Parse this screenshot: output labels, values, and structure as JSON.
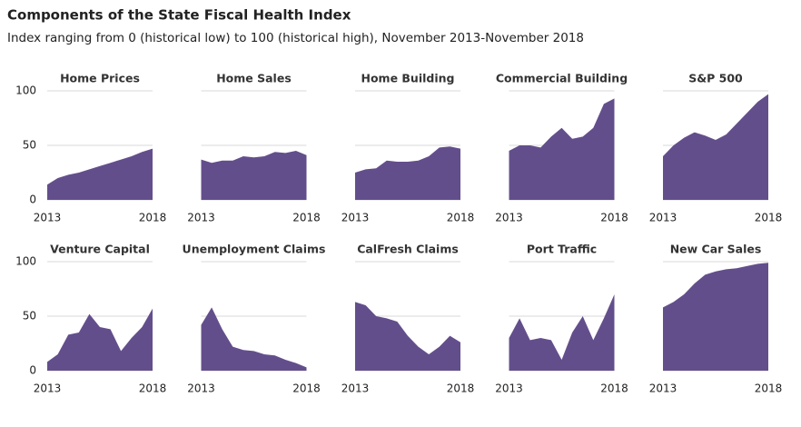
{
  "title": "Components of the State Fiscal Health Index",
  "subtitle": "Index ranging from 0 (historical low) to 100 (historical high), November 2013-November 2018",
  "chart_data": [
    {
      "type": "area",
      "title": "Home Prices",
      "x": [
        2013,
        2013.5,
        2014,
        2014.5,
        2015,
        2015.5,
        2016,
        2016.5,
        2017,
        2017.5,
        2018
      ],
      "values": [
        14,
        20,
        23,
        25,
        28,
        31,
        34,
        37,
        40,
        44,
        47
      ],
      "color": "#634e8c",
      "xlim": [
        2013,
        2018
      ],
      "xticks": [
        2013,
        2018
      ],
      "ylim": [
        0,
        100
      ],
      "yticks": [
        0,
        50,
        100
      ],
      "grid": true
    },
    {
      "type": "area",
      "title": "Home Sales",
      "x": [
        2013,
        2013.5,
        2014,
        2014.5,
        2015,
        2015.5,
        2016,
        2016.5,
        2017,
        2017.5,
        2018
      ],
      "values": [
        37,
        34,
        36,
        36,
        40,
        39,
        40,
        44,
        43,
        45,
        41
      ],
      "color": "#634e8c",
      "xlim": [
        2013,
        2018
      ],
      "xticks": [
        2013,
        2018
      ],
      "ylim": [
        0,
        100
      ],
      "yticks": [
        0,
        50,
        100
      ],
      "grid": true
    },
    {
      "type": "area",
      "title": "Home Building",
      "x": [
        2013,
        2013.5,
        2014,
        2014.5,
        2015,
        2015.5,
        2016,
        2016.5,
        2017,
        2017.5,
        2018
      ],
      "values": [
        25,
        28,
        29,
        36,
        35,
        35,
        36,
        40,
        48,
        49,
        47
      ],
      "color": "#634e8c",
      "xlim": [
        2013,
        2018
      ],
      "xticks": [
        2013,
        2018
      ],
      "ylim": [
        0,
        100
      ],
      "yticks": [
        0,
        50,
        100
      ],
      "grid": true
    },
    {
      "type": "area",
      "title": "Commercial Building",
      "x": [
        2013,
        2013.5,
        2014,
        2014.5,
        2015,
        2015.5,
        2016,
        2016.5,
        2017,
        2017.5,
        2018
      ],
      "values": [
        45,
        50,
        50,
        48,
        58,
        66,
        56,
        58,
        66,
        88,
        93
      ],
      "color": "#634e8c",
      "xlim": [
        2013,
        2018
      ],
      "xticks": [
        2013,
        2018
      ],
      "ylim": [
        0,
        100
      ],
      "yticks": [
        0,
        50,
        100
      ],
      "grid": true
    },
    {
      "type": "area",
      "title": "S&P 500",
      "x": [
        2013,
        2013.5,
        2014,
        2014.5,
        2015,
        2015.5,
        2016,
        2016.5,
        2017,
        2017.5,
        2018
      ],
      "values": [
        40,
        50,
        57,
        62,
        59,
        55,
        60,
        70,
        80,
        90,
        97
      ],
      "color": "#634e8c",
      "xlim": [
        2013,
        2018
      ],
      "xticks": [
        2013,
        2018
      ],
      "ylim": [
        0,
        100
      ],
      "yticks": [
        0,
        50,
        100
      ],
      "grid": true
    },
    {
      "type": "area",
      "title": "Venture Capital",
      "x": [
        2013,
        2013.5,
        2014,
        2014.5,
        2015,
        2015.5,
        2016,
        2016.5,
        2017,
        2017.5,
        2018
      ],
      "values": [
        8,
        15,
        33,
        35,
        52,
        40,
        38,
        18,
        30,
        40,
        57
      ],
      "color": "#634e8c",
      "xlim": [
        2013,
        2018
      ],
      "xticks": [
        2013,
        2018
      ],
      "ylim": [
        0,
        100
      ],
      "yticks": [
        0,
        50,
        100
      ],
      "grid": true
    },
    {
      "type": "area",
      "title": "Unemployment Claims",
      "x": [
        2013,
        2013.5,
        2014,
        2014.5,
        2015,
        2015.5,
        2016,
        2016.5,
        2017,
        2017.5,
        2018
      ],
      "values": [
        42,
        58,
        38,
        22,
        19,
        18,
        15,
        14,
        10,
        7,
        3
      ],
      "color": "#634e8c",
      "xlim": [
        2013,
        2018
      ],
      "xticks": [
        2013,
        2018
      ],
      "ylim": [
        0,
        100
      ],
      "yticks": [
        0,
        50,
        100
      ],
      "grid": true
    },
    {
      "type": "area",
      "title": "CalFresh Claims",
      "x": [
        2013,
        2013.5,
        2014,
        2014.5,
        2015,
        2015.5,
        2016,
        2016.5,
        2017,
        2017.5,
        2018
      ],
      "values": [
        63,
        60,
        50,
        48,
        45,
        32,
        22,
        15,
        22,
        32,
        26
      ],
      "color": "#634e8c",
      "xlim": [
        2013,
        2018
      ],
      "xticks": [
        2013,
        2018
      ],
      "ylim": [
        0,
        100
      ],
      "yticks": [
        0,
        50,
        100
      ],
      "grid": true
    },
    {
      "type": "area",
      "title": "Port Traffic",
      "x": [
        2013,
        2013.5,
        2014,
        2014.5,
        2015,
        2015.5,
        2016,
        2016.5,
        2017,
        2017.5,
        2018
      ],
      "values": [
        30,
        48,
        28,
        30,
        28,
        10,
        35,
        50,
        28,
        48,
        70
      ],
      "color": "#634e8c",
      "xlim": [
        2013,
        2018
      ],
      "xticks": [
        2013,
        2018
      ],
      "ylim": [
        0,
        100
      ],
      "yticks": [
        0,
        50,
        100
      ],
      "grid": true
    },
    {
      "type": "area",
      "title": "New Car Sales",
      "x": [
        2013,
        2013.5,
        2014,
        2014.5,
        2015,
        2015.5,
        2016,
        2016.5,
        2017,
        2017.5,
        2018
      ],
      "values": [
        58,
        63,
        70,
        80,
        88,
        91,
        93,
        94,
        96,
        98,
        99
      ],
      "color": "#634e8c",
      "xlim": [
        2013,
        2018
      ],
      "xticks": [
        2013,
        2018
      ],
      "ylim": [
        0,
        100
      ],
      "yticks": [
        0,
        50,
        100
      ],
      "grid": true
    }
  ]
}
